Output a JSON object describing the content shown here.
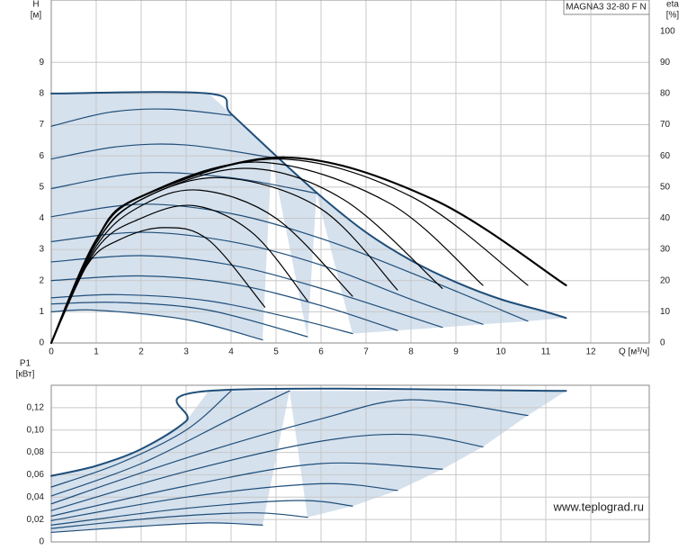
{
  "chart_data": [
    {
      "type": "line",
      "title": "MAGNA3 32-80 F N",
      "ylabel": "H",
      "yunit": "[м]",
      "y2label": "eta",
      "y2unit": "[%]",
      "xlabel": "Q [м³/ч]",
      "xlim": [
        0,
        13.3
      ],
      "xticks": [
        0,
        1,
        2,
        3,
        4,
        5,
        6,
        7,
        8,
        9,
        10,
        11,
        12
      ],
      "ylim": [
        0,
        11
      ],
      "yticks": [
        0,
        1,
        2,
        3,
        4,
        5,
        6,
        7,
        8,
        9
      ],
      "y2lim": [
        0,
        110
      ],
      "y2ticks": [
        0,
        10,
        20,
        30,
        40,
        50,
        60,
        70,
        80,
        90,
        100
      ],
      "grid": true,
      "fill_color": "#d5e1ed",
      "series": [
        {
          "color": "#1f4e79",
          "width": 2,
          "x": [
            0,
            3.5,
            4,
            5,
            6,
            7,
            8,
            9,
            10,
            11,
            11.45
          ],
          "values": [
            8,
            8,
            7.35,
            6.0,
            4.7,
            3.55,
            2.65,
            1.95,
            1.4,
            1.0,
            0.8
          ]
        },
        {
          "color": "#1f4e79",
          "width": 1.2,
          "x": [
            0,
            1.3,
            2.6,
            4
          ],
          "values": [
            6.95,
            7.4,
            7.5,
            7.3
          ]
        },
        {
          "color": "#1f4e79",
          "width": 1.2,
          "x": [
            0,
            1.5,
            3,
            4.9
          ],
          "values": [
            5.9,
            6.3,
            6.35,
            5.95
          ]
        },
        {
          "color": "#1f4e79",
          "width": 1.2,
          "x": [
            0,
            2,
            4,
            5.9
          ],
          "values": [
            4.95,
            5.45,
            5.3,
            4.8
          ]
        },
        {
          "color": "#1f4e79",
          "width": 1.2,
          "x": [
            0,
            2,
            4,
            6,
            8,
            10.6
          ],
          "values": [
            4.05,
            4.45,
            4.15,
            3.35,
            2.25,
            0.7
          ]
        },
        {
          "color": "#1f4e79",
          "width": 1.2,
          "x": [
            0,
            2,
            4,
            6,
            8,
            9.6
          ],
          "values": [
            3.25,
            3.55,
            3.25,
            2.5,
            1.4,
            0.6
          ]
        },
        {
          "color": "#1f4e79",
          "width": 1.2,
          "x": [
            0,
            2,
            4,
            6,
            8.7
          ],
          "values": [
            2.6,
            2.8,
            2.5,
            1.75,
            0.5
          ]
        },
        {
          "color": "#1f4e79",
          "width": 1.2,
          "x": [
            0,
            2,
            4,
            6,
            7.7
          ],
          "values": [
            2.0,
            2.15,
            1.9,
            1.2,
            0.4
          ]
        },
        {
          "color": "#1f4e79",
          "width": 1.2,
          "x": [
            0,
            1.5,
            3.5,
            5.5,
            6.7
          ],
          "values": [
            1.45,
            1.55,
            1.35,
            0.75,
            0.3
          ]
        },
        {
          "color": "#1f4e79",
          "width": 1.2,
          "x": [
            0,
            1.5,
            3.5,
            5.7
          ],
          "values": [
            1.25,
            1.3,
            1.05,
            0.2
          ]
        },
        {
          "color": "#1f4e79",
          "width": 1.2,
          "x": [
            0,
            1,
            3,
            4.7
          ],
          "values": [
            1.0,
            1.05,
            0.75,
            0.1
          ]
        },
        {
          "color": "#000000",
          "width": 1.2,
          "axis": "y2",
          "x": [
            0,
            0.8,
            1.5,
            2.5,
            3.5,
            4.75
          ],
          "values": [
            0,
            25,
            33,
            37,
            33,
            11.5
          ]
        },
        {
          "color": "#000000",
          "width": 1.2,
          "axis": "y2",
          "x": [
            0,
            1,
            2,
            3.2,
            4.5,
            5.7
          ],
          "values": [
            0,
            30,
            40,
            44,
            35,
            13.5
          ]
        },
        {
          "color": "#000000",
          "width": 1.2,
          "axis": "y2",
          "x": [
            0,
            1,
            2,
            3.3,
            5,
            6.7
          ],
          "values": [
            0,
            31,
            44,
            49,
            40,
            15
          ]
        },
        {
          "color": "#000000",
          "width": 1.2,
          "axis": "y2",
          "x": [
            0,
            1,
            2,
            3.8,
            6,
            7.7
          ],
          "values": [
            0,
            32,
            46,
            53,
            43,
            17
          ]
        },
        {
          "color": "#000000",
          "width": 1.2,
          "axis": "y2",
          "x": [
            0,
            1,
            2,
            4.3,
            6.5,
            8.7
          ],
          "values": [
            0,
            32,
            46,
            56,
            46,
            17.5
          ]
        },
        {
          "color": "#000000",
          "width": 1.2,
          "axis": "y2",
          "x": [
            0,
            1,
            2,
            4.6,
            7.5,
            9.6
          ],
          "values": [
            0,
            33,
            47,
            58,
            45,
            18.5
          ]
        },
        {
          "color": "#000000",
          "width": 1.2,
          "axis": "y2",
          "x": [
            0,
            1,
            2,
            5,
            8,
            10.6
          ],
          "values": [
            0,
            33,
            47,
            59,
            47,
            18.5
          ]
        },
        {
          "color": "#000000",
          "width": 2.2,
          "axis": "y2",
          "x": [
            0,
            1,
            2,
            5.2,
            8.5,
            11.45
          ],
          "values": [
            0,
            33,
            47,
            59.5,
            46,
            18.5
          ]
        }
      ]
    },
    {
      "type": "line",
      "ylabel": "P1",
      "yunit": "[кВт]",
      "annotation": "www.teplograd.ru",
      "xlim": [
        0,
        13.3
      ],
      "xticks": [
        0,
        1,
        2,
        3,
        4,
        5,
        6,
        7,
        8,
        9,
        10,
        11,
        12
      ],
      "ylim": [
        0,
        0.14
      ],
      "yticks": [
        0,
        {
          "value": 0.02,
          "label": "0,02"
        },
        {
          "value": 0.04,
          "label": "0,04"
        },
        {
          "value": 0.06,
          "label": "0,06"
        },
        {
          "value": 0.08,
          "label": "0,08"
        },
        {
          "value": 0.1,
          "label": "0,10"
        },
        {
          "value": 0.12,
          "label": "0,12"
        }
      ],
      "grid": true,
      "fill_color": "#d5e1ed",
      "series": [
        {
          "color": "#1f4e79",
          "width": 2,
          "x": [
            0,
            1,
            2,
            3,
            3.5,
            11.45
          ],
          "values": [
            0.059,
            0.068,
            0.083,
            0.108,
            0.135,
            0.135
          ]
        },
        {
          "color": "#1f4e79",
          "width": 1.2,
          "x": [
            0,
            1.5,
            3,
            4
          ],
          "values": [
            0.049,
            0.07,
            0.1,
            0.135
          ]
        },
        {
          "color": "#1f4e79",
          "width": 1.2,
          "x": [
            0,
            2,
            4,
            5.3
          ],
          "values": [
            0.041,
            0.07,
            0.11,
            0.135
          ]
        },
        {
          "color": "#1f4e79",
          "width": 1.2,
          "x": [
            0,
            3,
            6,
            8,
            10.6
          ],
          "values": [
            0.034,
            0.075,
            0.11,
            0.127,
            0.113
          ]
        },
        {
          "color": "#1f4e79",
          "width": 1.2,
          "x": [
            0,
            3,
            6,
            8,
            9.6
          ],
          "values": [
            0.028,
            0.063,
            0.09,
            0.096,
            0.085
          ]
        },
        {
          "color": "#1f4e79",
          "width": 1.2,
          "x": [
            0,
            3,
            6,
            8.7
          ],
          "values": [
            0.023,
            0.05,
            0.07,
            0.065
          ]
        },
        {
          "color": "#1f4e79",
          "width": 1.2,
          "x": [
            0,
            3,
            6,
            7.7
          ],
          "values": [
            0.019,
            0.04,
            0.052,
            0.046
          ]
        },
        {
          "color": "#1f4e79",
          "width": 1.2,
          "x": [
            0,
            3,
            5.5,
            6.7
          ],
          "values": [
            0.015,
            0.03,
            0.037,
            0.032
          ]
        },
        {
          "color": "#1f4e79",
          "width": 1.2,
          "x": [
            0,
            2.5,
            4.5,
            5.7
          ],
          "values": [
            0.012,
            0.022,
            0.026,
            0.022
          ]
        },
        {
          "color": "#1f4e79",
          "width": 1.2,
          "x": [
            0,
            2,
            3.5,
            4.7
          ],
          "values": [
            0.0085,
            0.014,
            0.017,
            0.015
          ]
        }
      ]
    }
  ]
}
